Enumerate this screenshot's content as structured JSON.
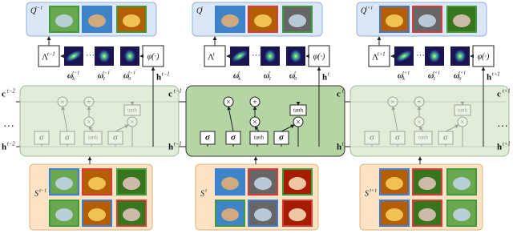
{
  "steps": [
    {
      "query": {
        "base": "Q",
        "sup": "t−1"
      },
      "lambda": {
        "base": "Λ",
        "sup": "t−1"
      },
      "omegas": [
        {
          "base": "ω",
          "sub": "k",
          "sup": "t−1"
        },
        {
          "base": "ω",
          "sub": "1",
          "sup": "t−1"
        },
        {
          "base": "ω",
          "sub": "0",
          "sup": "t−1"
        }
      ],
      "phi": "φ(·)",
      "h_up": {
        "base": "h",
        "sup": "t−1"
      },
      "support": {
        "base": "S",
        "sup": "t−1"
      }
    },
    {
      "query": {
        "base": "Q",
        "sup": "t"
      },
      "lambda": {
        "base": "Λ",
        "sup": "t"
      },
      "omegas": [
        {
          "base": "ω",
          "sub": "k",
          "sup": "t"
        },
        {
          "base": "ω",
          "sub": "1",
          "sup": "t"
        },
        {
          "base": "ω",
          "sub": "0",
          "sup": "t"
        }
      ],
      "phi": "φ(·)",
      "h_up": {
        "base": "h",
        "sup": "t"
      },
      "support": {
        "base": "S",
        "sup": "t"
      }
    },
    {
      "query": {
        "base": "Q",
        "sup": "t+1"
      },
      "lambda": {
        "base": "Λ",
        "sup": "t+1"
      },
      "omegas": [
        {
          "base": "ω",
          "sub": "k",
          "sup": "t+1"
        },
        {
          "base": "ω",
          "sub": "1",
          "sup": "t+1"
        },
        {
          "base": "ω",
          "sub": "0",
          "sup": "t+1"
        }
      ],
      "phi": "φ(·)",
      "h_up": {
        "base": "h",
        "sup": "t+1"
      },
      "support": {
        "base": "S",
        "sup": "t+1"
      }
    }
  ],
  "state_labels": [
    {
      "base": "c",
      "sup": "t−2"
    },
    {
      "base": "h",
      "sup": "t−2"
    },
    {
      "base": "c",
      "sup": "t−1"
    },
    {
      "base": "h",
      "sup": "t−1"
    },
    {
      "base": "c",
      "sup": "t"
    },
    {
      "base": "h",
      "sup": "t"
    },
    {
      "base": "c",
      "sup": "t+1"
    },
    {
      "base": "h",
      "sup": "t+1"
    }
  ],
  "ellipses": [
    "…",
    "…"
  ],
  "blob_dots": "···",
  "lstm": {
    "gates": [
      "σ",
      "σ",
      "tanh",
      "σ"
    ],
    "ops": [
      "×",
      "+",
      "×",
      "×"
    ],
    "cell_tanh": "tanh"
  }
}
